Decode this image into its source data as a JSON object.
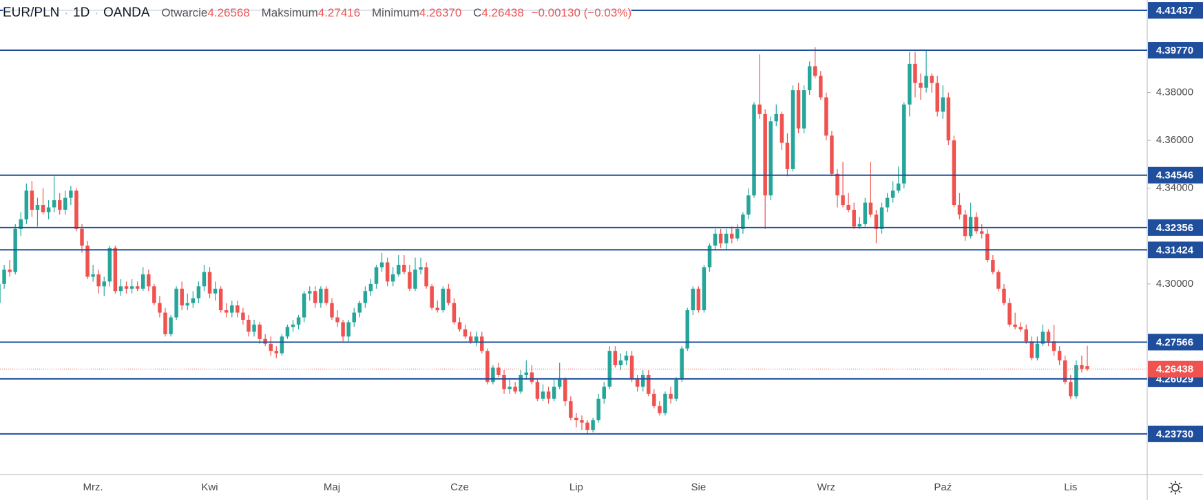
{
  "chart_data": {
    "type": "candlestick",
    "header": {
      "symbol": "EUR/PLN",
      "interval": "1D",
      "exchange": "OANDA",
      "open_label": "Otwarcie",
      "open": "4.26568",
      "high_label": "Maksimum",
      "high": "4.27416",
      "low_label": "Minimum",
      "low": "4.26370",
      "close_label": "C",
      "close": "4.26438",
      "change": "−0.00130 (−0.03%)"
    },
    "up_color": "#26a69a",
    "down_color": "#ef5350",
    "level_color": "#1f4e9c",
    "ylim": [
      4.2203,
      4.4187
    ],
    "yticks": [
      {
        "value": 4.38,
        "label": "4.38000"
      },
      {
        "value": 4.36,
        "label": "4.36000"
      },
      {
        "value": 4.34,
        "label": "4.34000"
      },
      {
        "value": 4.3,
        "label": "4.30000"
      }
    ],
    "levels": [
      4.41437,
      {
        "value": 4.3977,
        "label": "4.39770"
      },
      4.34546,
      4.32356,
      4.31424,
      4.27566,
      4.26029,
      {
        "value": 4.2373,
        "label": "4.23730"
      }
    ],
    "categories": [
      null,
      null,
      null,
      null,
      null,
      null,
      null,
      null,
      null,
      null,
      null,
      null,
      null,
      null,
      null,
      null,
      null,
      "Mrz.",
      null,
      null,
      null,
      null,
      null,
      null,
      null,
      null,
      null,
      null,
      null,
      null,
      null,
      null,
      null,
      null,
      null,
      null,
      null,
      null,
      "Kwi",
      null,
      null,
      null,
      null,
      null,
      null,
      null,
      null,
      null,
      null,
      null,
      null,
      null,
      null,
      null,
      null,
      null,
      null,
      null,
      null,
      null,
      "Maj",
      null,
      null,
      null,
      null,
      null,
      null,
      null,
      null,
      null,
      null,
      null,
      null,
      null,
      null,
      null,
      null,
      null,
      null,
      null,
      null,
      null,
      null,
      "Cze",
      null,
      null,
      null,
      null,
      null,
      null,
      null,
      null,
      null,
      null,
      null,
      null,
      null,
      null,
      null,
      null,
      null,
      null,
      null,
      null,
      "Lip",
      null,
      null,
      null,
      null,
      null,
      null,
      null,
      null,
      null,
      null,
      null,
      null,
      null,
      null,
      null,
      null,
      null,
      null,
      null,
      null,
      null,
      "Sie",
      null,
      null,
      null,
      null,
      null,
      null,
      null,
      null,
      null,
      null,
      null,
      null,
      null,
      null,
      null,
      null,
      null,
      null,
      null,
      null,
      null,
      null,
      "Wrz",
      null,
      null,
      null,
      null,
      null,
      null,
      null,
      null,
      null,
      null,
      null,
      null,
      null,
      null,
      null,
      null,
      null,
      null,
      null,
      null,
      "Paź",
      null,
      null,
      null,
      null,
      null,
      null,
      null,
      null,
      null,
      null,
      null,
      null,
      null,
      null,
      null,
      null,
      null,
      null,
      null,
      null,
      null,
      null,
      "Lis",
      null,
      null,
      null
    ],
    "ohlc": [
      [
        4.292,
        4.301,
        4.287,
        4.3
      ],
      [
        4.3,
        4.308,
        4.298,
        4.306
      ],
      [
        4.306,
        4.31,
        4.303,
        4.305
      ],
      [
        4.305,
        4.325,
        4.304,
        4.323
      ],
      [
        4.323,
        4.33,
        4.32,
        4.327
      ],
      [
        4.327,
        4.342,
        4.325,
        4.339
      ],
      [
        4.339,
        4.343,
        4.328,
        4.331
      ],
      [
        4.331,
        4.336,
        4.324,
        4.333
      ],
      [
        4.333,
        4.34,
        4.329,
        4.33
      ],
      [
        4.33,
        4.335,
        4.327,
        4.332
      ],
      [
        4.332,
        4.345,
        4.33,
        4.335
      ],
      [
        4.335,
        4.338,
        4.329,
        4.331
      ],
      [
        4.331,
        4.339,
        4.329,
        4.336
      ],
      [
        4.336,
        4.341,
        4.333,
        4.339
      ],
      [
        4.339,
        4.34,
        4.322,
        4.323
      ],
      [
        4.323,
        4.325,
        4.313,
        4.316
      ],
      [
        4.316,
        4.318,
        4.302,
        4.303
      ],
      [
        4.303,
        4.308,
        4.301,
        4.304
      ],
      [
        4.304,
        4.306,
        4.296,
        4.299
      ],
      [
        4.299,
        4.303,
        4.295,
        4.301
      ],
      [
        4.301,
        4.316,
        4.299,
        4.315
      ],
      [
        4.315,
        4.316,
        4.296,
        4.297
      ],
      [
        4.297,
        4.302,
        4.295,
        4.299
      ],
      [
        4.299,
        4.301,
        4.296,
        4.298
      ],
      [
        4.298,
        4.302,
        4.296,
        4.299
      ],
      [
        4.299,
        4.301,
        4.297,
        4.298
      ],
      [
        4.298,
        4.307,
        4.297,
        4.304
      ],
      [
        4.304,
        4.306,
        4.297,
        4.299
      ],
      [
        4.299,
        4.3,
        4.291,
        4.292
      ],
      [
        4.292,
        4.295,
        4.286,
        4.288
      ],
      [
        4.288,
        4.29,
        4.278,
        4.279
      ],
      [
        4.279,
        4.287,
        4.278,
        4.286
      ],
      [
        4.286,
        4.299,
        4.285,
        4.298
      ],
      [
        4.298,
        4.301,
        4.289,
        4.291
      ],
      [
        4.291,
        4.296,
        4.289,
        4.292
      ],
      [
        4.292,
        4.297,
        4.29,
        4.294
      ],
      [
        4.294,
        4.301,
        4.292,
        4.299
      ],
      [
        4.299,
        4.308,
        4.297,
        4.305
      ],
      [
        4.305,
        4.307,
        4.294,
        4.296
      ],
      [
        4.296,
        4.301,
        4.293,
        4.298
      ],
      [
        4.298,
        4.299,
        4.288,
        4.289
      ],
      [
        4.289,
        4.292,
        4.286,
        4.288
      ],
      [
        4.288,
        4.293,
        4.286,
        4.291
      ],
      [
        4.291,
        4.293,
        4.286,
        4.288
      ],
      [
        4.288,
        4.29,
        4.283,
        4.285
      ],
      [
        4.285,
        4.287,
        4.278,
        4.28
      ],
      [
        4.28,
        4.285,
        4.278,
        4.283
      ],
      [
        4.283,
        4.284,
        4.275,
        4.277
      ],
      [
        4.277,
        4.279,
        4.274,
        4.275
      ],
      [
        4.275,
        4.278,
        4.27,
        4.272
      ],
      [
        4.272,
        4.274,
        4.269,
        4.271
      ],
      [
        4.271,
        4.279,
        4.27,
        4.278
      ],
      [
        4.278,
        4.283,
        4.277,
        4.282
      ],
      [
        4.282,
        4.285,
        4.28,
        4.283
      ],
      [
        4.283,
        4.287,
        4.281,
        4.286
      ],
      [
        4.286,
        4.297,
        4.284,
        4.296
      ],
      [
        4.296,
        4.299,
        4.293,
        4.297
      ],
      [
        4.297,
        4.299,
        4.29,
        4.292
      ],
      [
        4.292,
        4.299,
        4.29,
        4.298
      ],
      [
        4.298,
        4.299,
        4.291,
        4.292
      ],
      [
        4.292,
        4.294,
        4.285,
        4.286
      ],
      [
        4.286,
        4.289,
        4.282,
        4.284
      ],
      [
        4.284,
        4.285,
        4.276,
        4.278
      ],
      [
        4.278,
        4.285,
        4.276,
        4.284
      ],
      [
        4.284,
        4.29,
        4.282,
        4.288
      ],
      [
        4.288,
        4.293,
        4.286,
        4.292
      ],
      [
        4.292,
        4.299,
        4.29,
        4.297
      ],
      [
        4.297,
        4.302,
        4.295,
        4.3
      ],
      [
        4.3,
        4.308,
        4.298,
        4.307
      ],
      [
        4.307,
        4.313,
        4.305,
        4.309
      ],
      [
        4.309,
        4.311,
        4.299,
        4.301
      ],
      [
        4.301,
        4.307,
        4.299,
        4.304
      ],
      [
        4.304,
        4.312,
        4.303,
        4.308
      ],
      [
        4.308,
        4.312,
        4.304,
        4.305
      ],
      [
        4.305,
        4.308,
        4.297,
        4.298
      ],
      [
        4.298,
        4.311,
        4.297,
        4.306
      ],
      [
        4.306,
        4.311,
        4.304,
        4.307
      ],
      [
        4.307,
        4.309,
        4.298,
        4.299
      ],
      [
        4.299,
        4.3,
        4.289,
        4.29
      ],
      [
        4.29,
        4.293,
        4.288,
        4.289
      ],
      [
        4.289,
        4.299,
        4.288,
        4.298
      ],
      [
        4.298,
        4.3,
        4.291,
        4.292
      ],
      [
        4.292,
        4.294,
        4.283,
        4.284
      ],
      [
        4.284,
        4.286,
        4.28,
        4.281
      ],
      [
        4.281,
        4.283,
        4.277,
        4.278
      ],
      [
        4.278,
        4.28,
        4.275,
        4.276
      ],
      [
        4.276,
        4.28,
        4.274,
        4.278
      ],
      [
        4.278,
        4.28,
        4.271,
        4.272
      ],
      [
        4.272,
        4.273,
        4.258,
        4.259
      ],
      [
        4.259,
        4.266,
        4.258,
        4.265
      ],
      [
        4.265,
        4.267,
        4.261,
        4.262
      ],
      [
        4.262,
        4.264,
        4.254,
        4.256
      ],
      [
        4.256,
        4.26,
        4.254,
        4.257
      ],
      [
        4.257,
        4.259,
        4.254,
        4.255
      ],
      [
        4.255,
        4.264,
        4.254,
        4.262
      ],
      [
        4.262,
        4.268,
        4.26,
        4.263
      ],
      [
        4.263,
        4.266,
        4.258,
        4.259
      ],
      [
        4.259,
        4.26,
        4.251,
        4.252
      ],
      [
        4.252,
        4.258,
        4.251,
        4.255
      ],
      [
        4.255,
        4.257,
        4.25,
        4.252
      ],
      [
        4.252,
        4.26,
        4.251,
        4.257
      ],
      [
        4.257,
        4.267,
        4.256,
        4.26
      ],
      [
        4.26,
        4.261,
        4.249,
        4.251
      ],
      [
        4.251,
        4.253,
        4.243,
        4.244
      ],
      [
        4.244,
        4.246,
        4.24,
        4.243
      ],
      [
        4.243,
        4.245,
        4.239,
        4.242
      ],
      [
        4.242,
        4.243,
        4.237,
        4.239
      ],
      [
        4.239,
        4.244,
        4.238,
        4.243
      ],
      [
        4.243,
        4.254,
        4.242,
        4.252
      ],
      [
        4.252,
        4.259,
        4.25,
        4.257
      ],
      [
        4.257,
        4.274,
        4.256,
        4.272
      ],
      [
        4.272,
        4.274,
        4.265,
        4.266
      ],
      [
        4.266,
        4.271,
        4.264,
        4.268
      ],
      [
        4.268,
        4.272,
        4.266,
        4.27
      ],
      [
        4.27,
        4.272,
        4.259,
        4.26
      ],
      [
        4.26,
        4.262,
        4.255,
        4.257
      ],
      [
        4.257,
        4.264,
        4.255,
        4.262
      ],
      [
        4.262,
        4.264,
        4.253,
        4.254
      ],
      [
        4.254,
        4.256,
        4.248,
        4.249
      ],
      [
        4.249,
        4.251,
        4.245,
        4.246
      ],
      [
        4.246,
        4.255,
        4.245,
        4.254
      ],
      [
        4.254,
        4.257,
        4.25,
        4.252
      ],
      [
        4.252,
        4.261,
        4.251,
        4.26
      ],
      [
        4.26,
        4.274,
        4.259,
        4.273
      ],
      [
        4.273,
        4.29,
        4.272,
        4.289
      ],
      [
        4.289,
        4.299,
        4.287,
        4.298
      ],
      [
        4.298,
        4.299,
        4.288,
        4.289
      ],
      [
        4.289,
        4.308,
        4.288,
        4.307
      ],
      [
        4.307,
        4.317,
        4.305,
        4.316
      ],
      [
        4.316,
        4.323,
        4.314,
        4.321
      ],
      [
        4.321,
        4.323,
        4.315,
        4.317
      ],
      [
        4.317,
        4.323,
        4.314,
        4.321
      ],
      [
        4.321,
        4.324,
        4.317,
        4.319
      ],
      [
        4.319,
        4.325,
        4.318,
        4.323
      ],
      [
        4.323,
        4.33,
        4.321,
        4.329
      ],
      [
        4.329,
        4.34,
        4.327,
        4.337
      ],
      [
        4.337,
        4.376,
        4.336,
        4.375
      ],
      [
        4.375,
        4.396,
        4.369,
        4.371
      ],
      [
        4.371,
        4.373,
        4.323,
        4.337
      ],
      [
        4.337,
        4.37,
        4.335,
        4.368
      ],
      [
        4.368,
        4.375,
        4.366,
        4.371
      ],
      [
        4.371,
        4.372,
        4.356,
        4.359
      ],
      [
        4.359,
        4.363,
        4.345,
        4.348
      ],
      [
        4.348,
        4.383,
        4.347,
        4.381
      ],
      [
        4.381,
        4.384,
        4.363,
        4.365
      ],
      [
        4.365,
        4.383,
        4.363,
        4.381
      ],
      [
        4.381,
        4.393,
        4.379,
        4.391
      ],
      [
        4.391,
        4.399,
        4.386,
        4.387
      ],
      [
        4.387,
        4.389,
        4.377,
        4.378
      ],
      [
        4.378,
        4.38,
        4.36,
        4.362
      ],
      [
        4.362,
        4.364,
        4.345,
        4.346
      ],
      [
        4.346,
        4.348,
        4.332,
        4.337
      ],
      [
        4.337,
        4.351,
        4.332,
        4.333
      ],
      [
        4.333,
        4.338,
        4.33,
        4.331
      ],
      [
        4.331,
        4.334,
        4.323,
        4.324
      ],
      [
        4.324,
        4.328,
        4.323,
        4.325
      ],
      [
        4.325,
        4.336,
        4.324,
        4.334
      ],
      [
        4.334,
        4.351,
        4.328,
        4.329
      ],
      [
        4.329,
        4.331,
        4.317,
        4.323
      ],
      [
        4.323,
        4.334,
        4.321,
        4.332
      ],
      [
        4.332,
        4.338,
        4.33,
        4.336
      ],
      [
        4.336,
        4.343,
        4.334,
        4.339
      ],
      [
        4.339,
        4.349,
        4.338,
        4.342
      ],
      [
        4.342,
        4.376,
        4.34,
        4.375
      ],
      [
        4.375,
        4.397,
        4.37,
        4.392
      ],
      [
        4.392,
        4.397,
        4.378,
        4.384
      ],
      [
        4.384,
        4.388,
        4.377,
        4.382
      ],
      [
        4.382,
        4.398,
        4.38,
        4.387
      ],
      [
        4.387,
        4.388,
        4.38,
        4.384
      ],
      [
        4.384,
        4.387,
        4.37,
        4.372
      ],
      [
        4.372,
        4.383,
        4.369,
        4.378
      ],
      [
        4.378,
        4.38,
        4.358,
        4.36
      ],
      [
        4.36,
        4.362,
        4.332,
        4.333
      ],
      [
        4.333,
        4.338,
        4.327,
        4.329
      ],
      [
        4.329,
        4.331,
        4.318,
        4.32
      ],
      [
        4.32,
        4.334,
        4.319,
        4.328
      ],
      [
        4.328,
        4.33,
        4.321,
        4.322
      ],
      [
        4.322,
        4.325,
        4.319,
        4.321
      ],
      [
        4.321,
        4.323,
        4.309,
        4.31
      ],
      [
        4.31,
        4.312,
        4.304,
        4.305
      ],
      [
        4.305,
        4.306,
        4.297,
        4.298
      ],
      [
        4.298,
        4.3,
        4.291,
        4.292
      ],
      [
        4.292,
        4.294,
        4.282,
        4.283
      ],
      [
        4.283,
        4.288,
        4.281,
        4.282
      ],
      [
        4.282,
        4.284,
        4.28,
        4.281
      ],
      [
        4.281,
        4.283,
        4.275,
        4.276
      ],
      [
        4.276,
        4.278,
        4.268,
        4.269
      ],
      [
        4.269,
        4.278,
        4.268,
        4.275
      ],
      [
        4.275,
        4.283,
        4.274,
        4.28
      ],
      [
        4.28,
        4.281,
        4.274,
        4.276
      ],
      [
        4.276,
        4.283,
        4.27,
        4.272
      ],
      [
        4.272,
        4.274,
        4.266,
        4.268
      ],
      [
        4.268,
        4.27,
        4.258,
        4.259
      ],
      [
        4.259,
        4.262,
        4.252,
        4.253
      ],
      [
        4.253,
        4.268,
        4.252,
        4.266
      ],
      [
        4.266,
        4.27,
        4.263,
        4.2645
      ],
      [
        4.26568,
        4.27416,
        4.2637,
        4.26438
      ]
    ]
  }
}
